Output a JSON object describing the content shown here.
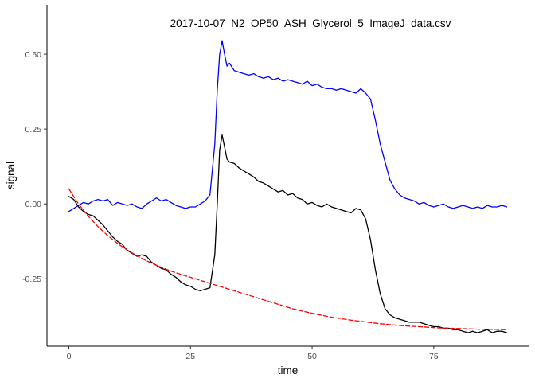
{
  "chart_data": {
    "type": "line",
    "title": "2017-10-07_N2_OP50_ASH_Glycerol_5_ImageJ_data.csv",
    "xlabel": "time",
    "ylabel": "signal",
    "xlim": [
      -4.5,
      94.5
    ],
    "ylim": [
      -0.475,
      0.665
    ],
    "x_ticks": [
      0,
      25,
      50,
      75
    ],
    "x_tick_labels": [
      "0",
      "25",
      "50",
      "75"
    ],
    "y_ticks": [
      -0.25,
      0.0,
      0.25,
      0.5
    ],
    "y_tick_labels": [
      "-0.25",
      "0.00",
      "0.25",
      "0.50"
    ],
    "grid": false,
    "legend": "none",
    "series": [
      {
        "color": "#0000ff",
        "style": "solid",
        "x": [
          0,
          1,
          2,
          3,
          4,
          5,
          6,
          7,
          8,
          9,
          10,
          11,
          12,
          13,
          14,
          15,
          16,
          17,
          18,
          19,
          20,
          21,
          22,
          23,
          24,
          25,
          26,
          27,
          28,
          29,
          30,
          30.5,
          31,
          31.5,
          32,
          32.5,
          33,
          34,
          35,
          36,
          37,
          38,
          39,
          40,
          41,
          42,
          43,
          44,
          45,
          46,
          47,
          48,
          49,
          50,
          51,
          52,
          53,
          54,
          55,
          56,
          57,
          58,
          59,
          60,
          61,
          62,
          63,
          64,
          65,
          66,
          67,
          68,
          69,
          70,
          71,
          72,
          73,
          74,
          75,
          76,
          77,
          78,
          79,
          80,
          81,
          82,
          83,
          84,
          85,
          86,
          87,
          88,
          89,
          90
        ],
        "y": [
          -0.025,
          -0.015,
          -0.005,
          0.005,
          0.0,
          0.01,
          0.015,
          0.01,
          0.015,
          -0.005,
          0.005,
          0.0,
          -0.005,
          0.0,
          -0.01,
          -0.015,
          0.0,
          0.01,
          0.02,
          0.01,
          0.015,
          0.005,
          -0.005,
          -0.01,
          -0.015,
          -0.01,
          -0.01,
          0.0,
          0.01,
          0.03,
          0.2,
          0.38,
          0.5,
          0.545,
          0.5,
          0.46,
          0.47,
          0.445,
          0.44,
          0.435,
          0.43,
          0.435,
          0.425,
          0.42,
          0.425,
          0.415,
          0.42,
          0.41,
          0.415,
          0.41,
          0.405,
          0.4,
          0.41,
          0.395,
          0.4,
          0.39,
          0.385,
          0.385,
          0.38,
          0.385,
          0.38,
          0.375,
          0.37,
          0.385,
          0.37,
          0.35,
          0.28,
          0.2,
          0.14,
          0.08,
          0.05,
          0.03,
          0.02,
          0.015,
          0.01,
          0.0,
          0.005,
          -0.005,
          -0.01,
          -0.005,
          0.0,
          -0.01,
          -0.015,
          -0.01,
          -0.005,
          -0.01,
          -0.015,
          -0.01,
          -0.015,
          -0.005,
          -0.01,
          -0.01,
          -0.005,
          -0.01
        ]
      },
      {
        "color": "#000000",
        "style": "solid",
        "x": [
          0,
          1,
          2,
          3,
          4,
          5,
          6,
          7,
          8,
          9,
          10,
          11,
          12,
          13,
          14,
          15,
          16,
          17,
          18,
          19,
          20,
          21,
          22,
          23,
          24,
          25,
          26,
          27,
          28,
          29,
          30,
          30.5,
          31,
          31.5,
          32,
          32.5,
          33,
          34,
          35,
          36,
          37,
          38,
          39,
          40,
          41,
          42,
          43,
          44,
          45,
          46,
          47,
          48,
          49,
          50,
          51,
          52,
          53,
          54,
          55,
          56,
          57,
          58,
          59,
          60,
          61,
          62,
          63,
          64,
          65,
          66,
          67,
          68,
          69,
          70,
          71,
          72,
          73,
          74,
          75,
          76,
          77,
          78,
          79,
          80,
          81,
          82,
          83,
          84,
          85,
          86,
          87,
          88,
          89,
          90
        ],
        "y": [
          0.025,
          0.015,
          -0.01,
          -0.025,
          -0.035,
          -0.04,
          -0.055,
          -0.07,
          -0.09,
          -0.11,
          -0.125,
          -0.135,
          -0.155,
          -0.165,
          -0.175,
          -0.17,
          -0.175,
          -0.195,
          -0.205,
          -0.215,
          -0.22,
          -0.235,
          -0.245,
          -0.26,
          -0.27,
          -0.275,
          -0.285,
          -0.29,
          -0.285,
          -0.28,
          -0.17,
          0.0,
          0.18,
          0.23,
          0.19,
          0.15,
          0.14,
          0.135,
          0.12,
          0.11,
          0.1,
          0.09,
          0.075,
          0.07,
          0.06,
          0.05,
          0.04,
          0.045,
          0.03,
          0.035,
          0.02,
          0.015,
          0.0,
          0.005,
          -0.005,
          -0.01,
          0.0,
          -0.01,
          -0.015,
          -0.02,
          -0.025,
          -0.03,
          -0.015,
          -0.02,
          -0.05,
          -0.12,
          -0.22,
          -0.3,
          -0.35,
          -0.37,
          -0.38,
          -0.385,
          -0.39,
          -0.395,
          -0.395,
          -0.395,
          -0.4,
          -0.405,
          -0.41,
          -0.41,
          -0.415,
          -0.415,
          -0.42,
          -0.42,
          -0.425,
          -0.43,
          -0.425,
          -0.43,
          -0.425,
          -0.42,
          -0.43,
          -0.425,
          -0.425,
          -0.43
        ]
      },
      {
        "color": "#ff0000",
        "style": "dashed",
        "x": [
          0,
          2,
          4,
          6,
          8,
          10,
          12,
          14,
          16,
          18,
          20,
          22,
          24,
          26,
          28,
          30,
          32,
          34,
          36,
          38,
          40,
          42,
          44,
          46,
          48,
          50,
          52,
          54,
          56,
          58,
          60,
          62,
          64,
          66,
          68,
          70,
          72,
          74,
          76,
          78,
          80,
          82,
          84,
          86,
          88,
          90
        ],
        "y": [
          0.05,
          0.0,
          -0.041,
          -0.076,
          -0.106,
          -0.132,
          -0.154,
          -0.173,
          -0.19,
          -0.205,
          -0.218,
          -0.23,
          -0.24,
          -0.25,
          -0.26,
          -0.27,
          -0.28,
          -0.29,
          -0.3,
          -0.31,
          -0.32,
          -0.33,
          -0.34,
          -0.35,
          -0.358,
          -0.365,
          -0.372,
          -0.378,
          -0.383,
          -0.388,
          -0.392,
          -0.396,
          -0.4,
          -0.403,
          -0.406,
          -0.408,
          -0.41,
          -0.412,
          -0.414,
          -0.415,
          -0.416,
          -0.417,
          -0.418,
          -0.419,
          -0.419,
          -0.42
        ]
      }
    ]
  }
}
